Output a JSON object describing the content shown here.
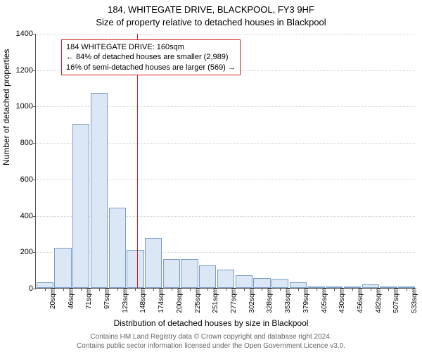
{
  "title": "184, WHITEGATE DRIVE, BLACKPOOL, FY3 9HF",
  "subtitle": "Size of property relative to detached houses in Blackpool",
  "ylabel": "Number of detached properties",
  "xlabel": "Distribution of detached houses by size in Blackpool",
  "footer1": "Contains HM Land Registry data © Crown copyright and database right 2024.",
  "footer2": "Contains public sector information licensed under the Open Government Licence v3.0.",
  "chart": {
    "type": "bar",
    "background_color": "#ffffff",
    "grid_color": "#d0d0d0",
    "axis_color": "#555555",
    "bar_fill": "#dce7f5",
    "bar_stroke": "#7a9cc6",
    "refline_color": "#d02020",
    "ylim": [
      0,
      1400
    ],
    "ytick_step": 200,
    "refline_x_index": 5.6,
    "categories": [
      "20sqm",
      "46sqm",
      "71sqm",
      "97sqm",
      "123sqm",
      "148sqm",
      "174sqm",
      "200sqm",
      "225sqm",
      "251sqm",
      "277sqm",
      "302sqm",
      "328sqm",
      "353sqm",
      "379sqm",
      "405sqm",
      "430sqm",
      "456sqm",
      "482sqm",
      "507sqm",
      "533sqm"
    ],
    "values": [
      30,
      220,
      900,
      1070,
      440,
      210,
      275,
      160,
      160,
      125,
      100,
      70,
      55,
      50,
      30,
      8,
      8,
      6,
      20,
      4,
      4
    ]
  },
  "annotation": {
    "line1": "184 WHITEGATE DRIVE: 160sqm",
    "line2": "← 84% of detached houses are smaller (2,989)",
    "line3": "16% of semi-detached houses are larger (569) →"
  }
}
